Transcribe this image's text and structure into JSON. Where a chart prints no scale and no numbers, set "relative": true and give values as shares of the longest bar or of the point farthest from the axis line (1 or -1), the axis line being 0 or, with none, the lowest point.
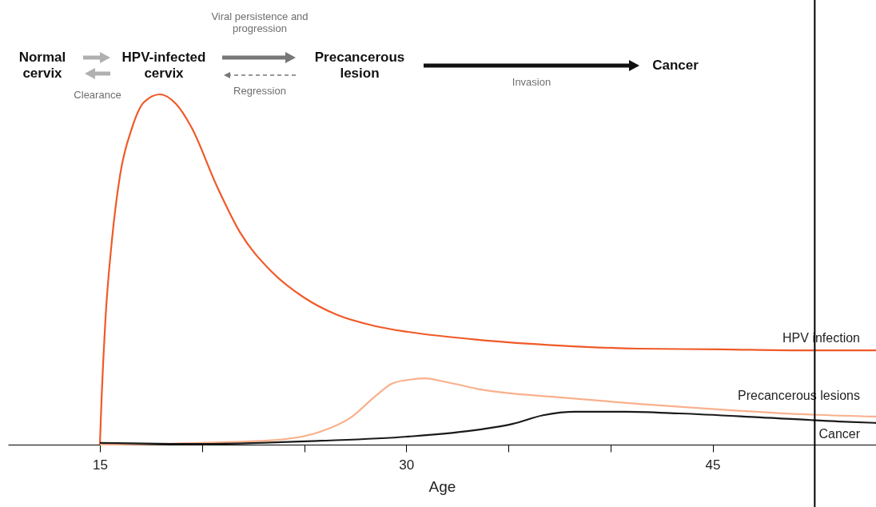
{
  "chart_data": {
    "type": "line",
    "relative": true,
    "xlabel": "Age",
    "xlim": [
      10.5,
      53
    ],
    "xticks": [
      15,
      {
        "value": 20,
        "label": null
      },
      {
        "value": 25,
        "label": null
      },
      30,
      {
        "value": 35,
        "label": null
      },
      {
        "value": 40,
        "label": null
      },
      45
    ],
    "grid": false,
    "marker": "none",
    "line_style": "solid",
    "ref_lines": [
      {
        "axis": "x",
        "value": 50,
        "color": "#000000"
      }
    ],
    "annotations": [
      "Normal cervix",
      "HPV-infected cervix",
      "Precancerous lesion",
      "Cancer",
      "Viral persistence and progression",
      "Clearance",
      "Regression",
      "Invasion"
    ],
    "series": [
      {
        "name": "HPV infection",
        "color": "#f05a28",
        "x": [
          15,
          15.08,
          15.27,
          15.59,
          15.98,
          16.57,
          17.15,
          17.94,
          18.72,
          19.5,
          20.68,
          21.85,
          23.42,
          24.99,
          26.55,
          28.51,
          30.08,
          33.6,
          37.5,
          41.4,
          45.4,
          49.3,
          53
        ],
        "values": [
          0,
          0.128,
          0.356,
          0.584,
          0.767,
          0.904,
          0.977,
          1,
          0.973,
          0.904,
          0.744,
          0.607,
          0.493,
          0.42,
          0.372,
          0.338,
          0.322,
          0.299,
          0.283,
          0.274,
          0.272,
          0.269,
          0.269
        ]
      },
      {
        "name": "Precancerous lesions",
        "color": "#f9b08c",
        "x": [
          15,
          19.9,
          23.8,
          25.8,
          27.3,
          28.5,
          29.3,
          30.1,
          30.9,
          32,
          33.6,
          37.5,
          41.4,
          45.4,
          49.3,
          53
        ],
        "values": [
          0,
          0.005,
          0.014,
          0.037,
          0.078,
          0.139,
          0.174,
          0.185,
          0.189,
          0.178,
          0.158,
          0.135,
          0.116,
          0.1,
          0.087,
          0.08
        ]
      },
      {
        "name": "Cancer",
        "color": "#1a1a1a",
        "x": [
          15,
          19.9,
          25.8,
          30.1,
          33.6,
          35.2,
          36.7,
          38.3,
          40.7,
          43.4,
          47.3,
          51.2,
          53
        ],
        "values": [
          0.005,
          0.002,
          0.011,
          0.023,
          0.043,
          0.059,
          0.084,
          0.094,
          0.094,
          0.089,
          0.078,
          0.066,
          0.062
        ]
      }
    ]
  }
}
